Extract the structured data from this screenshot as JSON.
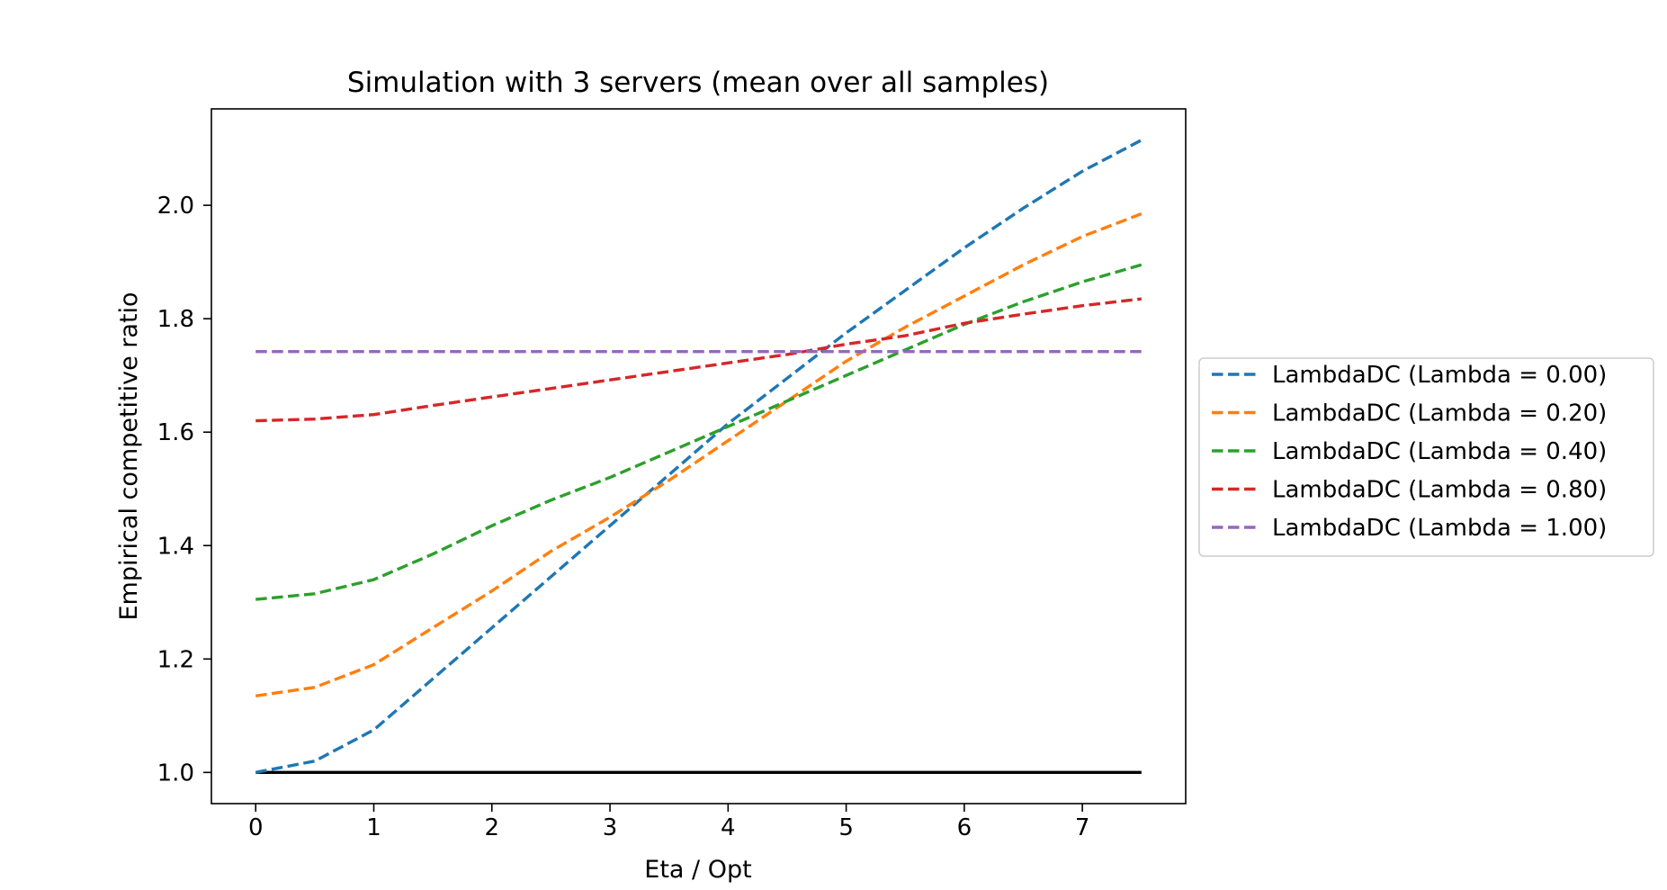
{
  "chart_data": {
    "type": "line",
    "title": "Simulation with 3 servers (mean over all samples)",
    "xlabel": "Eta / Opt",
    "ylabel": "Empirical competitive ratio",
    "xlim": [
      -0.375,
      7.875
    ],
    "ylim": [
      0.945,
      2.17
    ],
    "x_ticks": [
      0,
      1,
      2,
      3,
      4,
      5,
      6,
      7
    ],
    "x_tick_labels": [
      "0",
      "1",
      "2",
      "3",
      "4",
      "5",
      "6",
      "7"
    ],
    "y_ticks": [
      1.0,
      1.2,
      1.4,
      1.6,
      1.8,
      2.0
    ],
    "y_tick_labels": [
      "1.0",
      "1.2",
      "1.4",
      "1.6",
      "1.8",
      "2.0"
    ],
    "grid": false,
    "legend_position": "outside-right",
    "x": [
      0,
      0.5,
      1,
      1.5,
      2,
      2.5,
      3,
      3.5,
      4,
      4.5,
      5,
      5.5,
      6,
      6.5,
      7,
      7.5
    ],
    "series": [
      {
        "name": "LambdaDC (Lambda = 0.00)",
        "color": "#1f77b4",
        "style": "dashed",
        "values": [
          1.0,
          1.02,
          1.075,
          1.165,
          1.255,
          1.345,
          1.435,
          1.525,
          1.615,
          1.695,
          1.775,
          1.85,
          1.925,
          1.995,
          2.06,
          2.115
        ]
      },
      {
        "name": "LambdaDC (Lambda = 0.20)",
        "color": "#ff7f0e",
        "style": "dashed",
        "values": [
          1.135,
          1.15,
          1.19,
          1.255,
          1.32,
          1.39,
          1.45,
          1.515,
          1.585,
          1.655,
          1.725,
          1.785,
          1.84,
          1.895,
          1.945,
          1.985
        ]
      },
      {
        "name": "LambdaDC (Lambda = 0.40)",
        "color": "#2ca02c",
        "style": "dashed",
        "values": [
          1.305,
          1.315,
          1.34,
          1.385,
          1.435,
          1.48,
          1.52,
          1.565,
          1.61,
          1.655,
          1.7,
          1.745,
          1.79,
          1.83,
          1.865,
          1.895
        ]
      },
      {
        "name": "LambdaDC (Lambda = 0.80)",
        "color": "#d62728",
        "style": "dashed",
        "values": [
          1.62,
          1.623,
          1.631,
          1.647,
          1.662,
          1.677,
          1.692,
          1.707,
          1.722,
          1.737,
          1.755,
          1.77,
          1.792,
          1.808,
          1.823,
          1.835
        ]
      },
      {
        "name": "LambdaDC (Lambda = 1.00)",
        "color": "#9467bd",
        "style": "dashed",
        "values": [
          1.742,
          1.742,
          1.742,
          1.742,
          1.742,
          1.742,
          1.742,
          1.742,
          1.742,
          1.742,
          1.742,
          1.742,
          1.742,
          1.742,
          1.742,
          1.742
        ]
      }
    ],
    "reference_line": {
      "color": "#000000",
      "style": "solid",
      "x": [
        0,
        7.5
      ],
      "values": [
        1.0,
        1.0
      ]
    }
  }
}
